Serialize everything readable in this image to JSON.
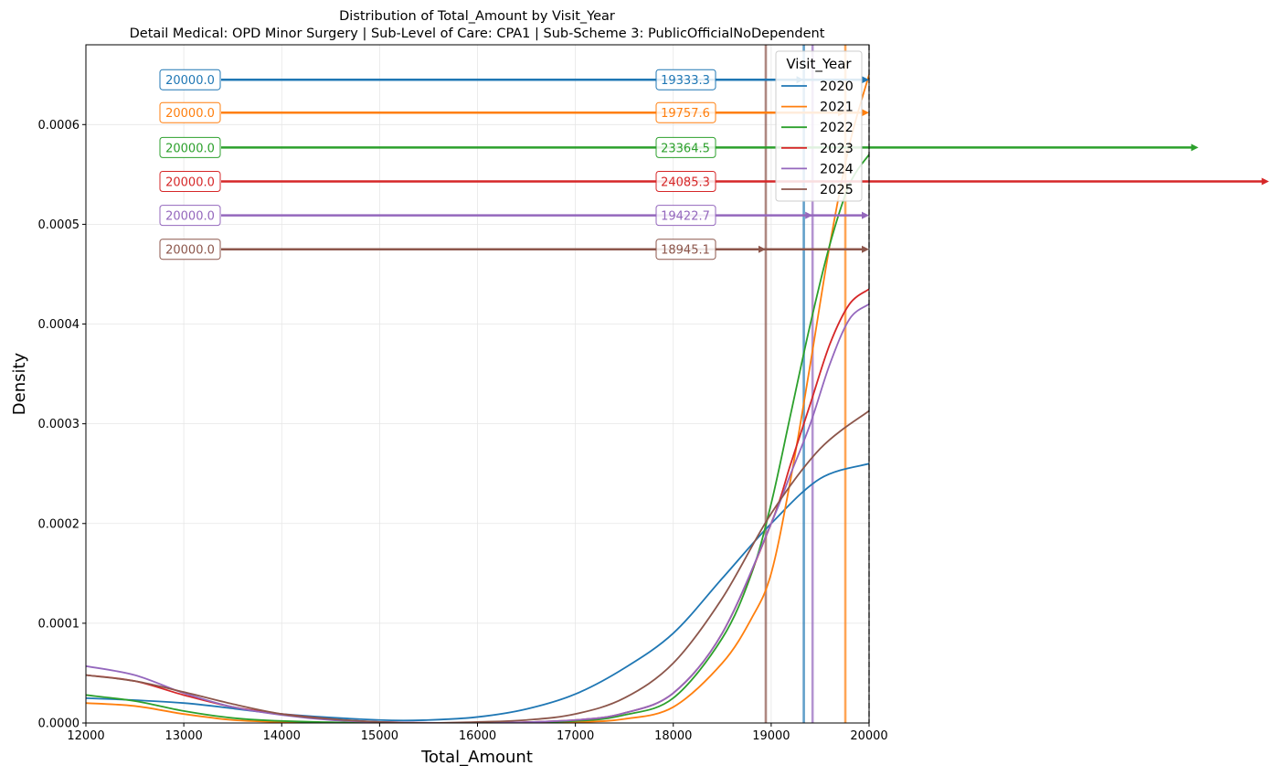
{
  "chart_data": {
    "type": "line",
    "title": "Distribution of Total_Amount by Visit_Year",
    "subtitle": "Detail Medical: OPD Minor Surgery | Sub-Level of Care: CPA1 | Sub-Scheme 3: PublicOfficialNoDependent",
    "xlabel": "Total_Amount",
    "ylabel": "Density",
    "xlim": [
      12000,
      20000
    ],
    "ylim": [
      0,
      0.00068
    ],
    "x_ticks": [
      12000,
      13000,
      14000,
      15000,
      16000,
      17000,
      18000,
      19000,
      20000
    ],
    "x_tick_labels": [
      "12000",
      "13000",
      "14000",
      "15000",
      "16000",
      "17000",
      "18000",
      "19000",
      "20000"
    ],
    "y_ticks": [
      0,
      0.0001,
      0.0002,
      0.0003,
      0.0004,
      0.0005,
      0.0006
    ],
    "y_tick_labels": [
      "0.0000",
      "0.0001",
      "0.0002",
      "0.0003",
      "0.0004",
      "0.0005",
      "0.0006"
    ],
    "grid": true,
    "legend": {
      "title": "Visit_Year",
      "placement": "top-right"
    },
    "clip_line_x": 20000,
    "series": [
      {
        "name": "2020",
        "color": "#1f77b4",
        "x": [
          12000,
          13000,
          14000,
          15000,
          15500,
          16000,
          16500,
          17000,
          17500,
          18000,
          18500,
          19000,
          19500,
          20000
        ],
        "y": [
          2.5e-05,
          2e-05,
          9e-06,
          3e-06,
          3e-06,
          6e-06,
          1.4e-05,
          2.9e-05,
          5.5e-05,
          9e-05,
          0.000145,
          0.0002,
          0.000245,
          0.00026
        ],
        "median": 19333.3,
        "max": 20000.0,
        "max_label": "20000.0",
        "median_label": "19333.3",
        "arrow_y": 0.000645,
        "arrow_end": 20000
      },
      {
        "name": "2021",
        "color": "#ff7f0e",
        "x": [
          12000,
          12500,
          13000,
          13500,
          14000,
          15000,
          16000,
          17000,
          17500,
          18000,
          18500,
          18800,
          19000,
          19200,
          19400,
          19600,
          19800,
          20000
        ],
        "y": [
          2e-05,
          1.7e-05,
          9e-06,
          3e-06,
          1e-06,
          0,
          0,
          1e-06,
          4e-06,
          1.6e-05,
          6e-05,
          0.000105,
          0.00015,
          0.000245,
          0.00036,
          0.00048,
          0.00058,
          0.00065
        ],
        "median": 19757.6,
        "max": 20000.0,
        "max_label": "20000.0",
        "median_label": "19757.6",
        "arrow_y": 0.000612,
        "arrow_end": 20000
      },
      {
        "name": "2022",
        "color": "#2ca02c",
        "x": [
          12000,
          12500,
          13000,
          13500,
          14000,
          15000,
          16000,
          17000,
          17500,
          18000,
          18500,
          18800,
          19000,
          19200,
          19400,
          19600,
          19800,
          20000
        ],
        "y": [
          2.8e-05,
          2.2e-05,
          1.2e-05,
          5e-06,
          2e-06,
          0,
          0,
          2e-06,
          8e-06,
          2.5e-05,
          8.5e-05,
          0.00015,
          0.00022,
          0.00031,
          0.0004,
          0.00048,
          0.00054,
          0.00057
        ],
        "median": 23364.5,
        "max": 20000.0,
        "max_label": "20000.0",
        "median_label": "23364.5",
        "arrow_y": 0.000577,
        "arrow_end": 23364.5
      },
      {
        "name": "2023",
        "color": "#d62728",
        "x": [
          12000,
          12500,
          13000,
          13500,
          14000,
          14500,
          15000,
          16000,
          17000,
          17500,
          18000,
          18500,
          19000,
          19200,
          19400,
          19600,
          19800,
          20000
        ],
        "y": [
          4.8e-05,
          4.2e-05,
          2.8e-05,
          1.6e-05,
          9e-06,
          4e-06,
          1e-06,
          0,
          3e-06,
          1e-05,
          3e-05,
          9e-05,
          0.0002,
          0.00026,
          0.00032,
          0.00038,
          0.00042,
          0.000435
        ],
        "median": 24085.3,
        "max": 20000.0,
        "max_label": "20000.0",
        "median_label": "24085.3",
        "arrow_y": 0.000543,
        "arrow_end": 24085.3
      },
      {
        "name": "2024",
        "color": "#9467bd",
        "x": [
          12000,
          12500,
          13000,
          13500,
          14000,
          14500,
          15000,
          16000,
          17000,
          17500,
          18000,
          18500,
          19000,
          19200,
          19400,
          19600,
          19800,
          20000
        ],
        "y": [
          5.7e-05,
          4.8e-05,
          3e-05,
          1.6e-05,
          8e-06,
          3e-06,
          1e-06,
          0,
          3e-06,
          1e-05,
          3e-05,
          9e-05,
          0.0002,
          0.00025,
          0.0003,
          0.00036,
          0.000405,
          0.00042
        ],
        "median": 19422.7,
        "max": 20000.0,
        "max_label": "20000.0",
        "median_label": "19422.7",
        "arrow_y": 0.000509,
        "arrow_end": 20000
      },
      {
        "name": "2025",
        "color": "#8c564b",
        "x": [
          12000,
          12500,
          13000,
          13500,
          14000,
          14500,
          15000,
          15500,
          16000,
          16500,
          17000,
          17500,
          18000,
          18500,
          19000,
          19500,
          20000
        ],
        "y": [
          4.8e-05,
          4.2e-05,
          3.1e-05,
          1.9e-05,
          9e-06,
          4e-06,
          1e-06,
          0,
          1e-06,
          3e-06,
          9e-06,
          2.5e-05,
          6e-05,
          0.000125,
          0.00021,
          0.000275,
          0.000313
        ],
        "median": 18945.1,
        "max": 20000.0,
        "max_label": "20000.0",
        "median_label": "18945.1",
        "arrow_y": 0.000475,
        "arrow_end": 20000
      }
    ]
  }
}
